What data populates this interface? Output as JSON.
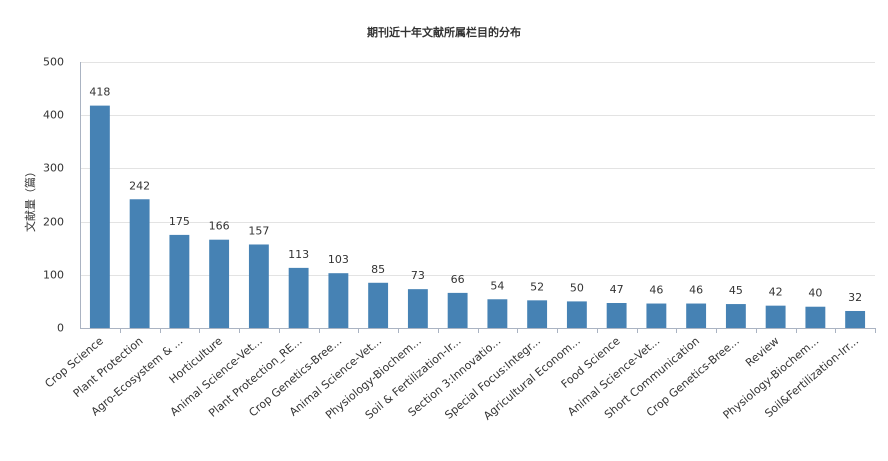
{
  "chart_data": {
    "type": "bar",
    "title": "期刊近十年文献所属栏目的分布",
    "xlabel": "",
    "ylabel": "文献量（篇）",
    "ylim": [
      0,
      500
    ],
    "yticks": [
      0,
      100,
      200,
      300,
      400,
      500
    ],
    "grid": true,
    "legend": "none",
    "bar_color": "#4682b4",
    "categories": [
      "Crop Science",
      "Plant Protection",
      "Agro-Ecosystem & ...",
      "Horticulture",
      "Animal Science-Vet...",
      "Plant Protection_RE...",
      "Crop Genetics-Bree...",
      "Animal Science-Vet...",
      "Physiology-Biochem...",
      "Soil & Fertilization-Ir...",
      "Section 3:Innovatio...",
      "Special Focus:Integr...",
      "Agricultural Econom...",
      "Food Science",
      "Animal Science-Vet...",
      "Short Communication",
      "Crop Genetics-Bree...",
      "Review",
      "Physiology-Biochem...",
      "Soil&Fertilization-Irr..."
    ],
    "values": [
      418,
      242,
      175,
      166,
      157,
      113,
      103,
      85,
      73,
      66,
      54,
      52,
      50,
      47,
      46,
      46,
      45,
      42,
      40,
      32
    ]
  }
}
